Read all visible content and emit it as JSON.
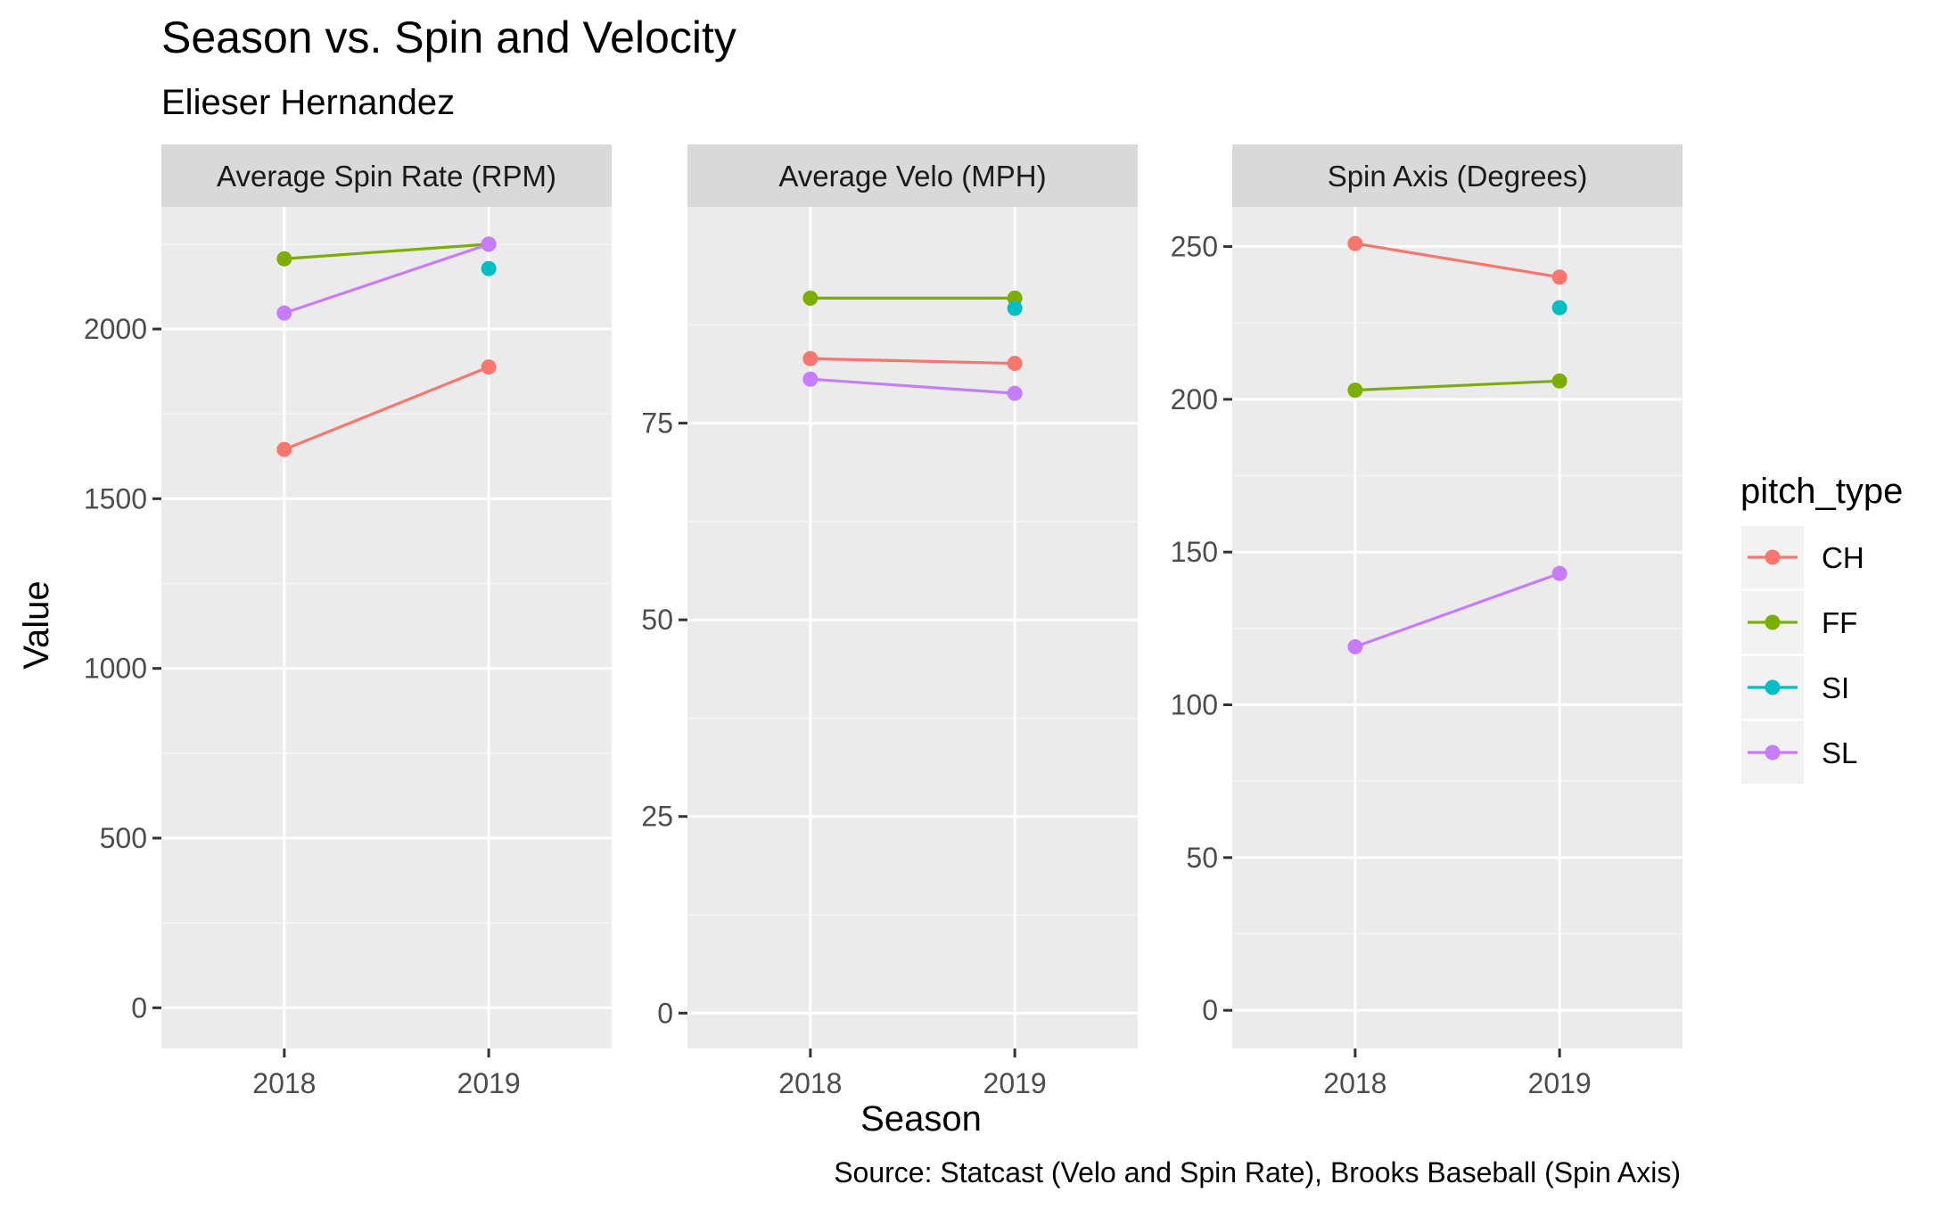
{
  "chart_data": {
    "type": "line",
    "title": "Season vs. Spin and Velocity",
    "subtitle": "Elieser Hernandez",
    "xlabel": "Season",
    "ylabel": "Value",
    "caption": "Source: Statcast (Velo and Spin Rate), Brooks Baseball (Spin Axis)",
    "legend": {
      "title": "pitch_type",
      "placement": "right",
      "entries": [
        {
          "name": "CH",
          "color": "#F8766D"
        },
        {
          "name": "FF",
          "color": "#7CAE00"
        },
        {
          "name": "SI",
          "color": "#00BFC4"
        },
        {
          "name": "SL",
          "color": "#C77CFF"
        }
      ]
    },
    "grid": true,
    "x_categories": [
      "2018",
      "2019"
    ],
    "panels": [
      {
        "strip_label": "Average Spin Rate (RPM)",
        "ylim": [
          -120,
          2360
        ],
        "yticks": [
          0,
          500,
          1000,
          1500,
          2000
        ],
        "ytick_labels": [
          "0",
          "500",
          "1000",
          "1500",
          "2000"
        ],
        "series": [
          {
            "name": "CH",
            "values": [
              1645,
              1888
            ]
          },
          {
            "name": "FF",
            "values": [
              2207,
              2250
            ]
          },
          {
            "name": "SI",
            "values": [
              null,
              2178
            ]
          },
          {
            "name": "SL",
            "values": [
              2047,
              2250
            ]
          }
        ]
      },
      {
        "strip_label": "Average Velo (MPH)",
        "ylim": [
          -4.5,
          102.5
        ],
        "yticks": [
          0,
          25,
          50,
          75
        ],
        "ytick_labels": [
          "0",
          "25",
          "50",
          "75"
        ],
        "series": [
          {
            "name": "CH",
            "values": [
              83.2,
              82.6
            ]
          },
          {
            "name": "FF",
            "values": [
              90.9,
              90.9
            ]
          },
          {
            "name": "SI",
            "values": [
              null,
              89.6
            ]
          },
          {
            "name": "SL",
            "values": [
              80.6,
              78.8
            ]
          }
        ]
      },
      {
        "strip_label": "Spin Axis (Degrees)",
        "ylim": [
          -12.5,
          263
        ],
        "yticks": [
          0,
          50,
          100,
          150,
          200,
          250
        ],
        "ytick_labels": [
          "0",
          "50",
          "100",
          "150",
          "200",
          "250"
        ],
        "series": [
          {
            "name": "CH",
            "values": [
              251,
              240
            ]
          },
          {
            "name": "FF",
            "values": [
              203,
              206
            ]
          },
          {
            "name": "SI",
            "values": [
              null,
              230
            ]
          },
          {
            "name": "SL",
            "values": [
              119,
              143
            ]
          }
        ]
      }
    ]
  }
}
